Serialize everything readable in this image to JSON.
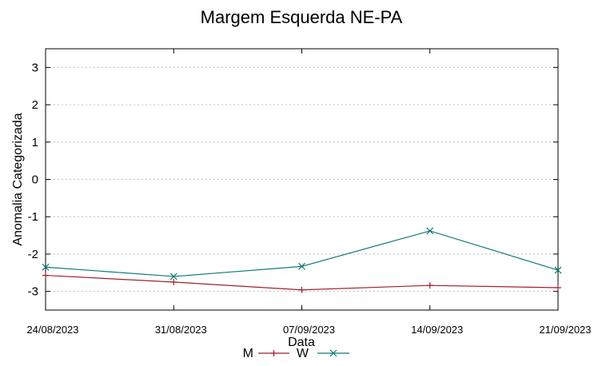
{
  "chart_data": {
    "type": "line",
    "title": "Margem Esquerda NE-PA",
    "xlabel": "Data",
    "ylabel": "Anomalia Categorizada",
    "categories": [
      "24/08/2023",
      "31/08/2023",
      "07/09/2023",
      "14/09/2023",
      "21/09/2023"
    ],
    "ylim": [
      -3.5,
      3.5
    ],
    "yticks": [
      "3",
      "2",
      "1",
      "0",
      "-1",
      "-2",
      "-3"
    ],
    "grid": true,
    "legend_position": "bottom",
    "series": [
      {
        "name": "M",
        "color": "#a0212e",
        "marker": "plus",
        "values": [
          -2.57,
          -2.75,
          -2.96,
          -2.84,
          -2.9
        ]
      },
      {
        "name": "W",
        "color": "#127a74",
        "marker": "cross",
        "values": [
          -2.35,
          -2.6,
          -2.33,
          -1.38,
          -2.43
        ]
      }
    ]
  }
}
